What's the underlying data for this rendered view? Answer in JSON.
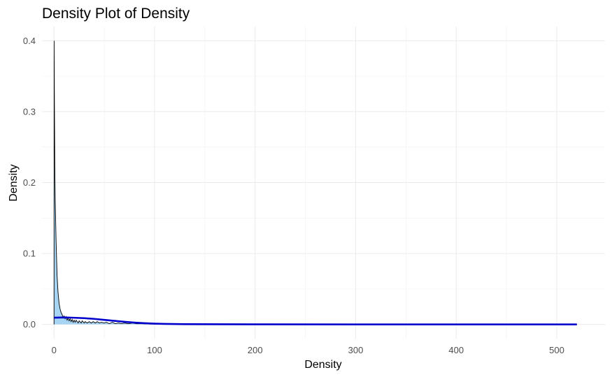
{
  "chart_data": {
    "type": "area",
    "title": "Density Plot of Density",
    "xlabel": "Density",
    "ylabel": "Density",
    "xlim": [
      -12,
      548
    ],
    "ylim": [
      -0.02,
      0.42
    ],
    "x_ticks": [
      0,
      100,
      200,
      300,
      400,
      500
    ],
    "x_tick_labels": [
      "0",
      "100",
      "200",
      "300",
      "400",
      "500"
    ],
    "y_ticks": [
      0.0,
      0.1,
      0.2,
      0.3,
      0.4
    ],
    "y_tick_labels": [
      "0.0",
      "0.1",
      "0.2",
      "0.3",
      "0.4"
    ],
    "grid": true,
    "series": [
      {
        "role": "density-area",
        "fill": "#a6d4f2",
        "stroke": "#000000",
        "points": [
          [
            0,
            0.0
          ],
          [
            0.1,
            0.4
          ],
          [
            0.4,
            0.31
          ],
          [
            0.8,
            0.22
          ],
          [
            1.2,
            0.175
          ],
          [
            2,
            0.12
          ],
          [
            3,
            0.07
          ],
          [
            4,
            0.045
          ],
          [
            5,
            0.03
          ],
          [
            6,
            0.022
          ],
          [
            7,
            0.017
          ],
          [
            8,
            0.014
          ],
          [
            9,
            0.01
          ],
          [
            10,
            0.012
          ],
          [
            11,
            0.008
          ],
          [
            12,
            0.011
          ],
          [
            13,
            0.006
          ],
          [
            14,
            0.009
          ],
          [
            15,
            0.005
          ],
          [
            16,
            0.008
          ],
          [
            17,
            0.004
          ],
          [
            18,
            0.007
          ],
          [
            19,
            0.003
          ],
          [
            20,
            0.006
          ],
          [
            21,
            0.003
          ],
          [
            22,
            0.006
          ],
          [
            24,
            0.002
          ],
          [
            25,
            0.005
          ],
          [
            27,
            0.002
          ],
          [
            28,
            0.005
          ],
          [
            30,
            0.002
          ],
          [
            31,
            0.004
          ],
          [
            33,
            0.002
          ],
          [
            35,
            0.004
          ],
          [
            37,
            0.002
          ],
          [
            39,
            0.004
          ],
          [
            41,
            0.002
          ],
          [
            43,
            0.004
          ],
          [
            45,
            0.002
          ],
          [
            47,
            0.003
          ],
          [
            50,
            0.002
          ],
          [
            52,
            0.003
          ],
          [
            55,
            0.001
          ],
          [
            58,
            0.003
          ],
          [
            61,
            0.001
          ],
          [
            64,
            0.002
          ],
          [
            67,
            0.001
          ],
          [
            70,
            0.002
          ],
          [
            74,
            0.001
          ],
          [
            78,
            0.002
          ],
          [
            82,
            0.001
          ],
          [
            88,
            0.001
          ],
          [
            95,
            0.0005
          ],
          [
            105,
            0.0002
          ],
          [
            520,
            0.0
          ]
        ]
      },
      {
        "role": "smooth-line",
        "stroke": "#0000cc",
        "points": [
          [
            0,
            0.0095
          ],
          [
            10,
            0.0098
          ],
          [
            20,
            0.0094
          ],
          [
            30,
            0.0088
          ],
          [
            40,
            0.0078
          ],
          [
            50,
            0.0064
          ],
          [
            60,
            0.005
          ],
          [
            70,
            0.0037
          ],
          [
            80,
            0.0026
          ],
          [
            90,
            0.0017
          ],
          [
            100,
            0.0011
          ],
          [
            110,
            0.0007
          ],
          [
            130,
            0.0004
          ],
          [
            160,
            0.0002
          ],
          [
            200,
            0.0001
          ],
          [
            300,
            0.0
          ],
          [
            400,
            0.0
          ],
          [
            520,
            0.0
          ]
        ]
      }
    ]
  }
}
